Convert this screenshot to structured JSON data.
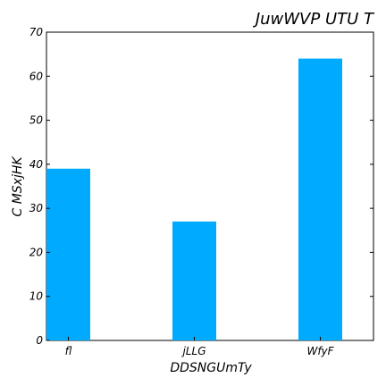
{
  "chart_data": {
    "type": "bar",
    "title": "JuwWVP UTU T",
    "xlabel": "DDSNGUmTy",
    "ylabel": "C MSxjHK",
    "categories": [
      "fl",
      "jLLG",
      "WfyF"
    ],
    "values": [
      39,
      27,
      64
    ],
    "ylim": [
      0,
      70
    ],
    "yticks": [
      0,
      10,
      20,
      30,
      40,
      50,
      60,
      70
    ],
    "grid": false,
    "bar_color": "#00AAFF",
    "axis_color": "#000000",
    "background": "#FFFFFF"
  }
}
